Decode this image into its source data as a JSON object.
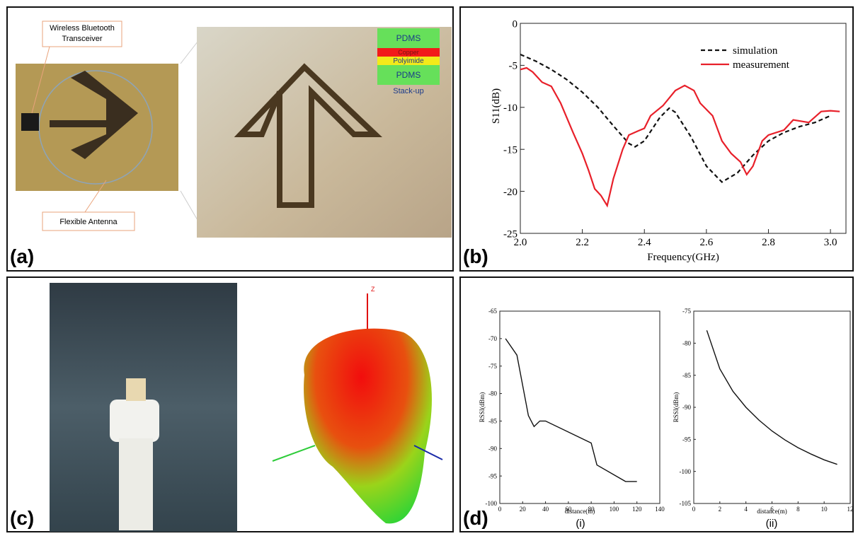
{
  "panels": {
    "a": {
      "label": "(a)",
      "annotations": [
        "Wireless Bluetooth",
        "Transceiver",
        "Flexible Antenna"
      ],
      "stack": [
        "PDMS",
        "Copper",
        "Polyimide",
        "PDMS"
      ],
      "stack_caption": "Stack-up"
    },
    "b": {
      "label": "(b)"
    },
    "c": {
      "label": "(c)",
      "axis_label": "Z"
    },
    "d": {
      "label": "(d)",
      "sublabels": [
        "(i)",
        "(ii)"
      ]
    }
  },
  "chart_data": [
    {
      "type": "line",
      "xlabel": "Frequency(GHz)",
      "ylabel": "S11(dB)",
      "legend": "upper right",
      "xlim": [
        2.0,
        3.05
      ],
      "ylim": [
        -25,
        0
      ],
      "xticks": [
        {
          "value": 2.0,
          "label": "2.0"
        },
        2.2,
        2.4,
        2.6,
        2.8,
        {
          "value": 3.0,
          "label": "3.0"
        }
      ],
      "yticks": [
        0,
        -5,
        -10,
        -15,
        -20,
        -25
      ],
      "series": [
        {
          "name": "simulation",
          "color": "#111111",
          "linestyle": "dashed",
          "x": [
            2.0,
            2.05,
            2.1,
            2.15,
            2.2,
            2.25,
            2.3,
            2.35,
            2.37,
            2.4,
            2.45,
            2.48,
            2.5,
            2.55,
            2.6,
            2.65,
            2.7,
            2.75,
            2.8,
            2.85,
            2.9,
            2.95,
            3.0
          ],
          "values": [
            -3.7,
            -4.5,
            -5.5,
            -6.7,
            -8.2,
            -10,
            -12.2,
            -14.3,
            -14.7,
            -14,
            -11.2,
            -10.1,
            -10.6,
            -13.5,
            -17,
            -18.9,
            -17.8,
            -15.7,
            -14,
            -13,
            -12.3,
            -11.8,
            -11
          ]
        },
        {
          "name": "measurement",
          "color": "#e8202a",
          "linestyle": "solid",
          "x": [
            2.0,
            2.02,
            2.04,
            2.07,
            2.1,
            2.13,
            2.17,
            2.2,
            2.22,
            2.24,
            2.26,
            2.28,
            2.3,
            2.33,
            2.35,
            2.38,
            2.4,
            2.42,
            2.46,
            2.5,
            2.53,
            2.56,
            2.58,
            2.62,
            2.65,
            2.68,
            2.71,
            2.73,
            2.75,
            2.78,
            2.8,
            2.85,
            2.88,
            2.93,
            2.97,
            3.0,
            3.03
          ],
          "values": [
            -5.5,
            -5.3,
            -5.8,
            -7,
            -7.5,
            -9.5,
            -13,
            -15.5,
            -17.5,
            -19.7,
            -20.5,
            -21.7,
            -18.5,
            -15,
            -13.3,
            -12.8,
            -12.5,
            -11,
            -9.8,
            -8,
            -7.4,
            -8,
            -9.5,
            -11,
            -14,
            -15.5,
            -16.5,
            -18,
            -17,
            -14,
            -13.3,
            -12.7,
            -11.5,
            -11.8,
            -10.5,
            -10.4,
            -10.5
          ]
        }
      ]
    },
    {
      "type": "line",
      "xlabel": "distance(m)",
      "ylabel": "RSSI(dBm)",
      "xlim": [
        0,
        140
      ],
      "ylim": [
        -100,
        -65
      ],
      "xticks": [
        0,
        20,
        40,
        60,
        80,
        100,
        120,
        140
      ],
      "yticks": [
        -65,
        -70,
        -75,
        -80,
        -85,
        -90,
        -95,
        -100
      ],
      "series": [
        {
          "color": "#111111",
          "linestyle": "solid",
          "x": [
            5,
            15,
            25,
            30,
            35,
            40,
            80,
            85,
            110,
            120
          ],
          "values": [
            -70,
            -73,
            -84,
            -86,
            -85,
            -85,
            -89,
            -93,
            -96,
            -96
          ]
        }
      ]
    },
    {
      "type": "line",
      "xlabel": "distance(m)",
      "ylabel": "RSSI(dBm)",
      "xlim": [
        0,
        12
      ],
      "ylim": [
        -105,
        -75
      ],
      "xticks": [
        0,
        2,
        4,
        6,
        8,
        10,
        12
      ],
      "yticks": [
        -75,
        -80,
        -85,
        -90,
        -95,
        -100,
        -105
      ],
      "series": [
        {
          "color": "#111111",
          "linestyle": "solid",
          "x": [
            1,
            2,
            3,
            4,
            5,
            6,
            7,
            8,
            9,
            10,
            11
          ],
          "values": [
            -78,
            -84,
            -87.5,
            -90,
            -92,
            -93.7,
            -95.1,
            -96.3,
            -97.3,
            -98.2,
            -98.9
          ]
        }
      ]
    }
  ]
}
